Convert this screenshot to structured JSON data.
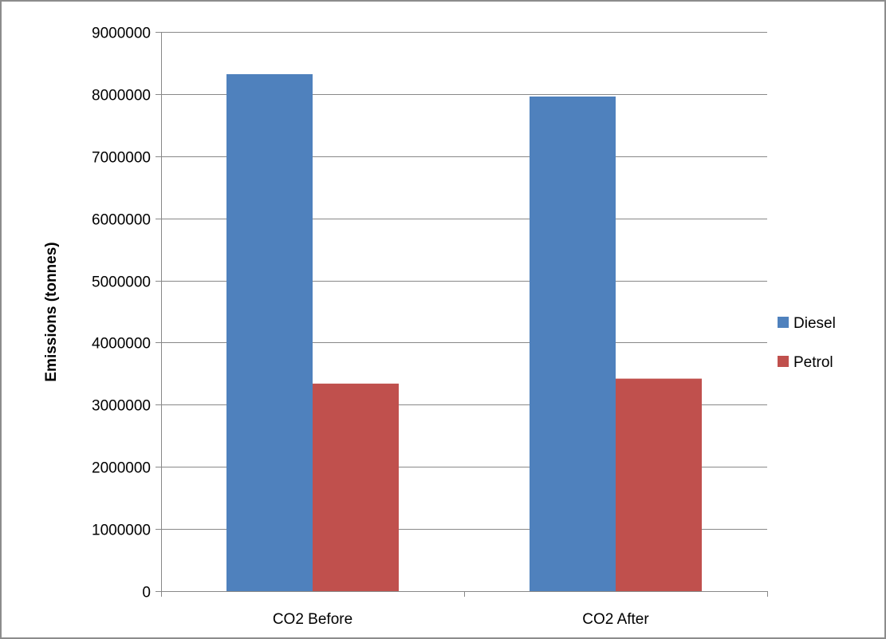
{
  "chart_data": {
    "type": "bar",
    "title": "",
    "xlabel": "",
    "ylabel": "Emissions (tonnes)",
    "categories": [
      "CO2 Before",
      "CO2 After"
    ],
    "series": [
      {
        "name": "Diesel",
        "values": [
          8320000,
          7960000
        ],
        "color": "#4F81BD"
      },
      {
        "name": "Petrol",
        "values": [
          3340000,
          3420000
        ],
        "color": "#C0504D"
      }
    ],
    "ylim": [
      0,
      9000000
    ],
    "yticks": [
      0,
      1000000,
      2000000,
      3000000,
      4000000,
      5000000,
      6000000,
      7000000,
      8000000,
      9000000
    ],
    "grid": true,
    "legend_position": "right"
  },
  "colors": {
    "border": "#8C8C8C",
    "gridline": "#888888",
    "axis": "#888888"
  }
}
